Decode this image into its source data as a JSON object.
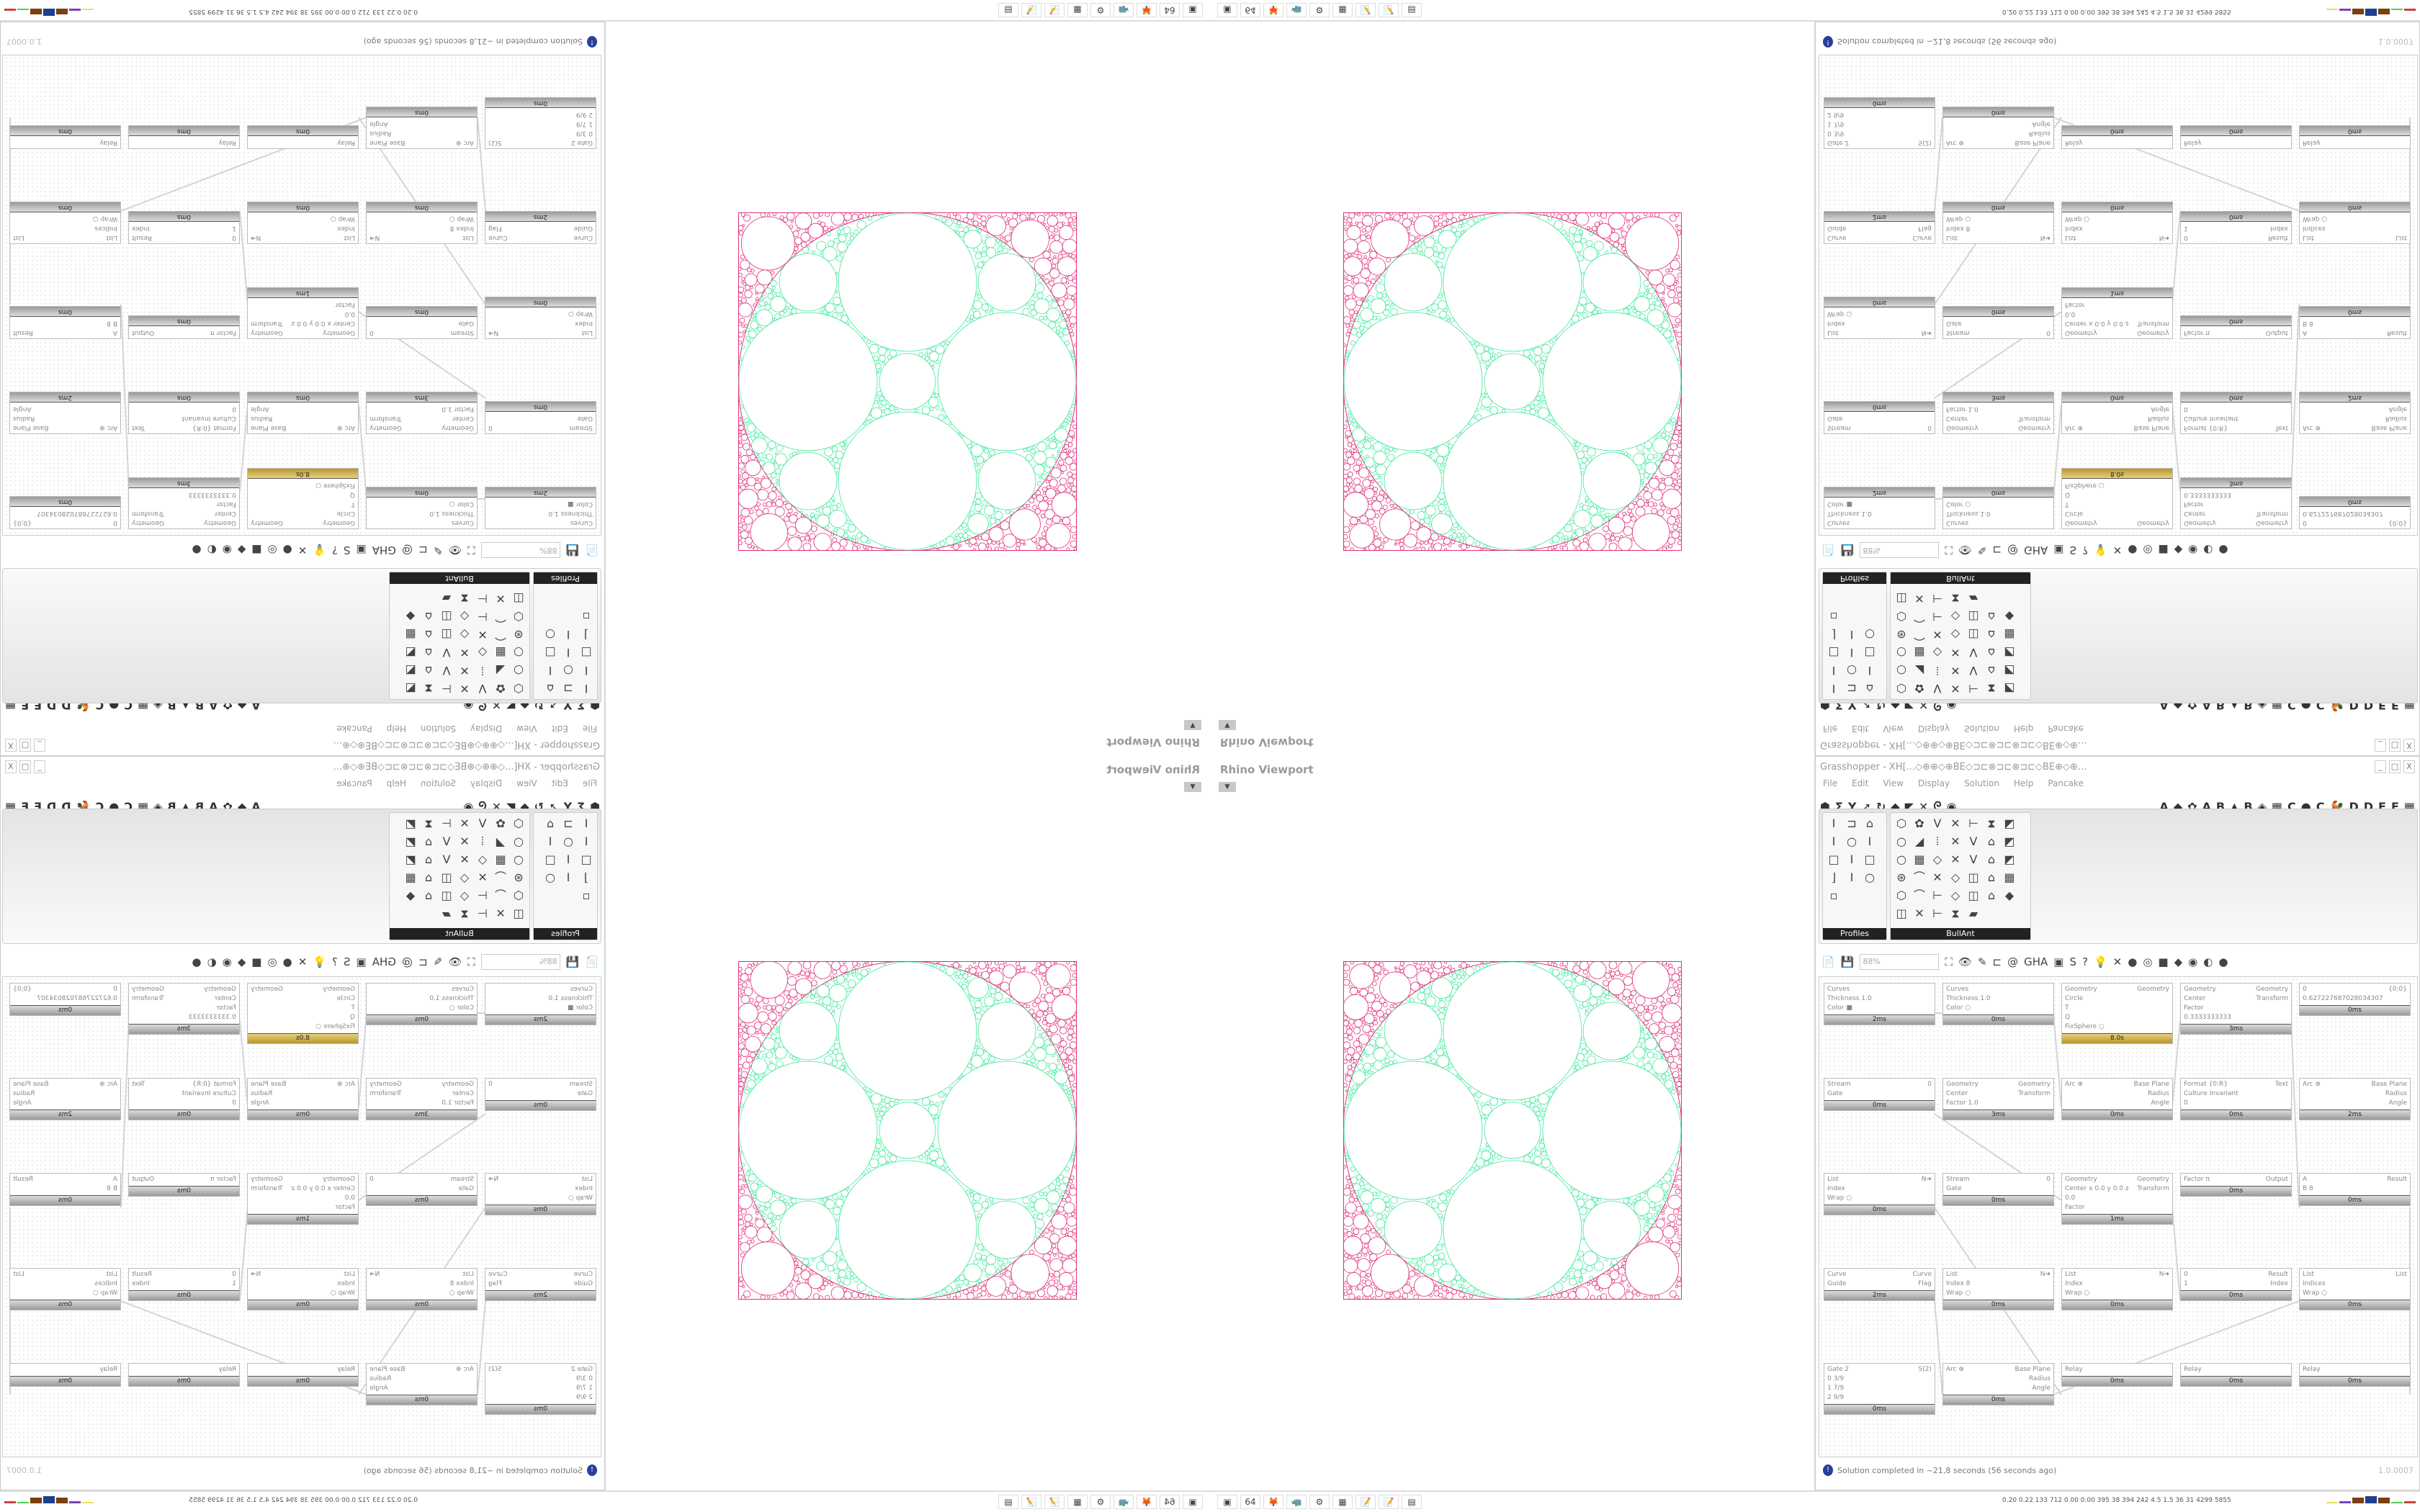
{
  "viewport": {
    "label": "Rhino Viewport",
    "colors": {
      "inner": "#3de89a",
      "outer": "#e0307a"
    }
  },
  "grasshopper": {
    "title": "Grasshopper - XH[...◇⊕⊕◇⊕BE◇⊐⊏⊗⊐⊏⊗⊐⊏◇BE⊕◇⊕...",
    "window_buttons": [
      "_",
      "□",
      "X"
    ],
    "menu": [
      "File",
      "Edit",
      "View",
      "Display",
      "Solution",
      "Help",
      "Pancake"
    ],
    "tab_icons_left": [
      "⬢",
      "Σ",
      "Y",
      "➚",
      "↻",
      "◆",
      "◤",
      "✕",
      "ᘓ",
      "◉"
    ],
    "tab_letters": [
      "A",
      "◆",
      "✿",
      "A",
      "B",
      "▲",
      "B",
      "◈",
      "▦",
      "C",
      "●",
      "C",
      "🐓",
      "D",
      "D",
      "E",
      "E",
      "▦"
    ],
    "panels": [
      {
        "title": "Profiles",
        "icons": [
          "I",
          "⊐",
          "⌂",
          "I",
          "○",
          "I",
          "□",
          "I",
          "□",
          "⌋",
          "I",
          "○",
          "▫"
        ]
      },
      {
        "title": "BullAnt",
        "icons": [
          "⬡",
          "✿",
          "V",
          "✕",
          "⊢",
          "⧗",
          "◩",
          "○",
          "◢",
          "⦙",
          "✕",
          "V",
          "⌂",
          "◩",
          "○",
          "▦",
          "◇",
          "✕",
          "V",
          "⌂",
          "◩",
          "⊛",
          "⌒",
          "✕",
          "◇",
          "◫",
          "⌂",
          "▦",
          "⬡",
          "⌒",
          "⊢",
          "◇",
          "◫",
          "⌂",
          "◆",
          "◫",
          "✕",
          "⊢",
          "⧗",
          "▰"
        ]
      }
    ],
    "canvas_toolbar": {
      "zoom": "88%",
      "icons": [
        "📄",
        "💾",
        "⛶",
        "👁",
        "✎",
        "⊏",
        "@",
        "GHA",
        "▣",
        "S",
        "?",
        "💡",
        "✕",
        "●",
        "◎",
        "■",
        "◆",
        "◉",
        "◐",
        "●"
      ]
    },
    "nodes": [
      {
        "inputs": [
          "Curves",
          "Thickness 1.0",
          "Color ■"
        ],
        "outputs": [],
        "time": "2ms"
      },
      {
        "inputs": [
          "Curves",
          "Thickness 1.0",
          "Color ○"
        ],
        "outputs": [],
        "time": "0ms"
      },
      {
        "inputs": [
          "Geometry",
          "Circle",
          "T",
          "Q",
          "FixSphere ○"
        ],
        "outputs": [
          "Geometry"
        ],
        "time": "8.0s"
      },
      {
        "inputs": [
          "Geometry",
          "Center",
          "Factor 0.3333333333"
        ],
        "outputs": [
          "Geometry",
          "Transform"
        ],
        "time": "3ms"
      },
      {
        "inputs": [
          "0 0.627227687028034307"
        ],
        "outputs": [
          "{0;0}"
        ],
        "time": "0ms"
      },
      {
        "inputs": [
          "Stream",
          "Gate"
        ],
        "outputs": [
          "0"
        ],
        "time": "0ms"
      },
      {
        "inputs": [
          "Geometry",
          "Center",
          "Factor 1.0"
        ],
        "outputs": [
          "Geometry",
          "Transform"
        ],
        "time": "3ms"
      },
      {
        "inputs": [
          "Arc ⊕"
        ],
        "outputs": [
          "Base Plane",
          "Radius",
          "Angle"
        ],
        "time": "0ms"
      },
      {
        "inputs": [
          "Format {0:R}",
          "Culture Invariant",
          "0"
        ],
        "outputs": [
          "Text"
        ],
        "time": "0ms"
      },
      {
        "inputs": [
          "Arc ⊕"
        ],
        "outputs": [
          "Base Plane",
          "Radius",
          "Angle"
        ],
        "time": "2ms"
      },
      {
        "inputs": [
          "List",
          "Index",
          "Wrap ○"
        ],
        "outputs": [
          "N➜"
        ],
        "time": "0ms"
      },
      {
        "inputs": [
          "Stream",
          "Gate"
        ],
        "outputs": [
          "0"
        ],
        "time": "0ms"
      },
      {
        "inputs": [
          "Geometry",
          "Center x 0.0 y 0.0 z 0.0",
          "Factor"
        ],
        "outputs": [
          "Geometry",
          "Transform"
        ],
        "time": "1ms"
      },
      {
        "inputs": [
          "Factor π"
        ],
        "outputs": [
          "Output"
        ],
        "time": "0ms"
      },
      {
        "inputs": [
          "A",
          "B 8"
        ],
        "outputs": [
          "Result"
        ],
        "time": "0ms"
      },
      {
        "inputs": [
          "Curve",
          "Guide"
        ],
        "outputs": [
          "Curve",
          "Flag"
        ],
        "time": "2ms"
      },
      {
        "inputs": [
          "List",
          "Index 8",
          "Wrap ○"
        ],
        "outputs": [
          "N➜"
        ],
        "time": "0ms"
      },
      {
        "inputs": [
          "List",
          "Index",
          "Wrap ○"
        ],
        "outputs": [
          "N➜"
        ],
        "time": "0ms"
      },
      {
        "inputs": [
          "0",
          "1"
        ],
        "outputs": [
          "Result",
          "Index"
        ],
        "time": "0ms"
      },
      {
        "inputs": [
          "List",
          "Indices",
          "Wrap ○"
        ],
        "outputs": [
          "List"
        ],
        "time": "0ms"
      },
      {
        "inputs": [
          "Gate 2",
          "0 3/9",
          "1 7/9",
          "2 9/9"
        ],
        "outputs": [
          "S(2)"
        ],
        "time": "0ms"
      },
      {
        "inputs": [
          "Arc ⊕"
        ],
        "outputs": [
          "Base Plane",
          "Radius",
          "Angle"
        ],
        "time": "0ms"
      },
      {
        "inputs": [
          "Relay"
        ],
        "outputs": [],
        "time": "0ms"
      },
      {
        "inputs": [
          "Relay"
        ],
        "outputs": [],
        "time": "0ms"
      },
      {
        "inputs": [
          "Relay"
        ],
        "outputs": [],
        "time": "0ms"
      }
    ],
    "status": "Solution completed in ~21,8 seconds (56 seconds ago)",
    "version": "1.0.0007"
  },
  "taskbar": {
    "apps": [
      "▣",
      "64",
      "🦊",
      "🦏",
      "⚙",
      "▦",
      "📝",
      "📝",
      "▤"
    ],
    "stats": "0.20 0.22 133 712 0.00 0.00 395 38 394 242 4.5 1.5 36 31 4299 5855"
  }
}
